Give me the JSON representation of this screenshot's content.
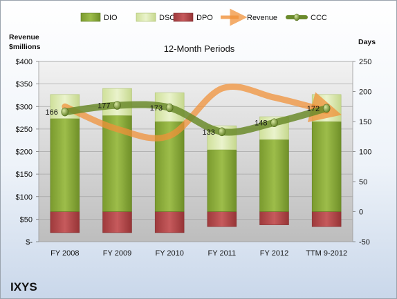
{
  "company": "IXYS",
  "chart_data": {
    "type": "bar",
    "title": "12-Month Periods",
    "categories": [
      "FY 2008",
      "FY 2009",
      "FY 2010",
      "FY 2011",
      "FY 2012",
      "TTM 9-2012"
    ],
    "left_axis": {
      "label_line1": "Revenue",
      "label_line2": "$millions",
      "range": [
        0,
        400
      ],
      "ticks": [
        0,
        50,
        100,
        150,
        200,
        250,
        300,
        350,
        400
      ],
      "tick_labels": [
        "$-",
        "$50",
        "$100",
        "$150",
        "$200",
        "$250",
        "$300",
        "$350",
        "$400"
      ]
    },
    "right_axis": {
      "label": "Days",
      "range": [
        -50,
        250
      ],
      "ticks": [
        -50,
        0,
        50,
        100,
        150,
        200,
        250
      ],
      "tick_labels": [
        "-50",
        "0",
        "50",
        "100",
        "150",
        "200",
        "250"
      ]
    },
    "grid": true,
    "legend_position": "top",
    "legend": [
      "DIO",
      "DSO",
      "DPO",
      "Revenue",
      "CCC"
    ],
    "series": [
      {
        "name": "DIO",
        "type": "stacked-bar",
        "axis": "right",
        "color": "#8bab3c",
        "values": [
          155,
          160,
          150,
          103,
          120,
          150
        ]
      },
      {
        "name": "DSO",
        "type": "stacked-bar",
        "axis": "right",
        "color": "#dbe9b0",
        "values": [
          40,
          45,
          48,
          40,
          38,
          45
        ]
      },
      {
        "name": "DPO",
        "type": "bar-negative",
        "axis": "right",
        "color": "#b8474a",
        "values": [
          -35,
          -35,
          -35,
          -25,
          -22,
          -25
        ]
      },
      {
        "name": "Revenue",
        "type": "line",
        "axis": "left",
        "color": "#f0913a",
        "values": [
          300,
          250,
          235,
          340,
          320,
          290
        ]
      },
      {
        "name": "CCC",
        "type": "line",
        "axis": "right",
        "color": "#6b8b2c",
        "values": [
          166,
          177,
          173,
          133,
          148,
          172
        ],
        "labels": [
          "166",
          "177",
          "173",
          "133",
          "148",
          "172"
        ]
      }
    ]
  }
}
